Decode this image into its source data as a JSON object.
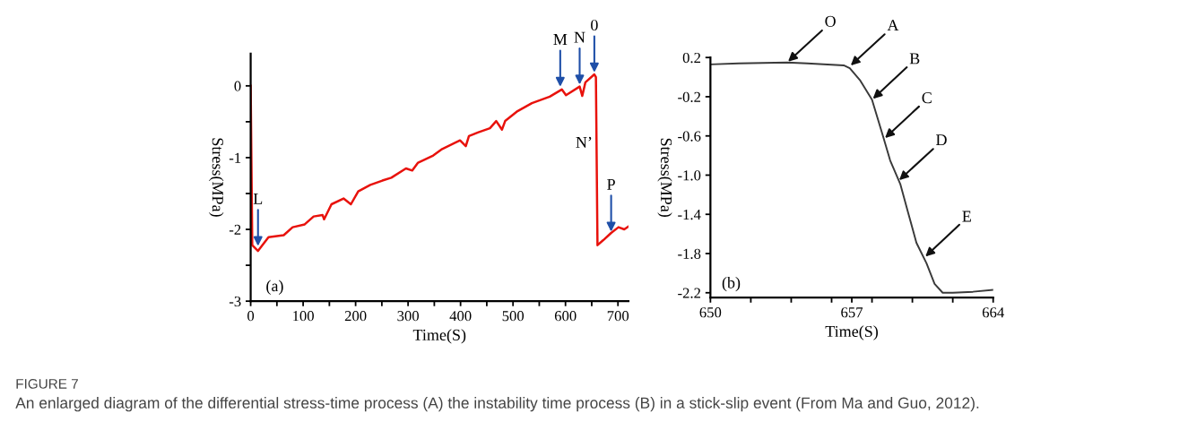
{
  "chart_data": [
    {
      "type": "line",
      "title": "(a)",
      "xlabel": "Time(S)",
      "ylabel": "Stress(MPa)",
      "x": [
        0,
        3,
        14,
        34,
        63,
        80,
        103,
        120,
        137,
        140,
        154,
        177,
        191,
        205,
        228,
        251,
        268,
        296,
        308,
        319,
        348,
        365,
        399,
        410,
        416,
        433,
        456,
        468,
        479,
        485,
        507,
        536,
        570,
        593,
        601,
        627,
        632,
        638,
        655,
        658,
        661,
        672,
        687,
        701,
        712,
        720
      ],
      "series": [
        {
          "color": "#e8120c",
          "values": [
            0,
            -2.22,
            -2.3,
            -2.11,
            -2.08,
            -1.97,
            -1.93,
            -1.82,
            -1.8,
            -1.86,
            -1.65,
            -1.57,
            -1.65,
            -1.47,
            -1.38,
            -1.32,
            -1.28,
            -1.15,
            -1.18,
            -1.07,
            -0.97,
            -0.88,
            -0.76,
            -0.84,
            -0.7,
            -0.65,
            -0.59,
            -0.49,
            -0.61,
            -0.49,
            -0.36,
            -0.24,
            -0.15,
            -0.05,
            -0.13,
            -0.01,
            -0.14,
            0.05,
            0.16,
            0.12,
            -2.22,
            -2.15,
            -2.05,
            -1.97,
            -2.0,
            -1.96
          ]
        }
      ],
      "xlim": [
        0,
        720
      ],
      "ylim": [
        -3,
        0.45
      ],
      "xticks": [
        0,
        {
          "value": 50,
          "label": null
        },
        100,
        {
          "value": 150,
          "label": null
        },
        200,
        {
          "value": 250,
          "label": null
        },
        300,
        {
          "value": 350,
          "label": null
        },
        400,
        {
          "value": 450,
          "label": null
        },
        500,
        {
          "value": 550,
          "label": null
        },
        600,
        {
          "value": 650,
          "label": null
        },
        700
      ],
      "yticks": [
        -3,
        {
          "value": -2.5,
          "label": null
        },
        -2,
        {
          "value": -1.5,
          "label": null
        },
        -1,
        {
          "value": -0.5,
          "label": null
        },
        0
      ],
      "grid": false,
      "legend": false,
      "line_style": "solid",
      "marker": "none",
      "annotations": [
        {
          "text": "L",
          "x": 14,
          "y": -2.25
        },
        {
          "text": "M",
          "x": 590,
          "y": -0.03
        },
        {
          "text": "N",
          "x": 627,
          "y": 0.0
        },
        {
          "text": "0",
          "x": 655,
          "y": 0.17
        },
        {
          "text": "P",
          "x": 687,
          "y": -2.05
        },
        "N’"
      ]
    },
    {
      "type": "line",
      "title": "(b)",
      "xlabel": "Time(S)",
      "ylabel": "Stress(MPa)",
      "x": [
        650,
        651.4,
        653.8,
        654.8,
        656.6,
        656.9,
        657.4,
        658,
        658.5,
        658.9,
        659.4,
        659.8,
        660.2,
        660.7,
        661.1,
        661.5,
        662,
        663,
        664
      ],
      "series": [
        {
          "color": "#3a3a3a",
          "values": [
            0.13,
            0.14,
            0.15,
            0.14,
            0.12,
            0.09,
            -0.03,
            -0.23,
            -0.57,
            -0.85,
            -1.09,
            -1.39,
            -1.69,
            -1.9,
            -2.11,
            -2.2,
            -2.2,
            -2.19,
            -2.17
          ]
        }
      ],
      "xlim": [
        650,
        664
      ],
      "ylim": [
        -2.25,
        0.2
      ],
      "xticks": [
        650,
        {
          "value": 652,
          "label": null
        },
        {
          "value": 654,
          "label": null
        },
        {
          "value": 656,
          "label": null
        },
        657,
        {
          "value": 658,
          "label": null
        },
        {
          "value": 660,
          "label": null
        },
        {
          "value": 662,
          "label": null
        },
        664
      ],
      "yticks": [
        {
          "value": -2.2,
          "label": "-2.2"
        },
        {
          "value": -1.8,
          "label": "-1.8"
        },
        {
          "value": -1.4,
          "label": "-1.4"
        },
        {
          "value": -1.0,
          "label": "-1.0"
        },
        {
          "value": -0.6,
          "label": "-0.6"
        },
        {
          "value": -0.2,
          "label": "-0.2"
        },
        0.2
      ],
      "grid": false,
      "legend": false,
      "line_style": "solid",
      "marker": "none",
      "annotations": [
        {
          "text": "O",
          "x": 653.8,
          "y": 0.15
        },
        {
          "text": "A",
          "x": 656.9,
          "y": 0.11
        },
        {
          "text": "B",
          "x": 658,
          "y": -0.23
        },
        {
          "text": "C",
          "x": 658.6,
          "y": -0.63
        },
        {
          "text": "D",
          "x": 659.3,
          "y": -1.06
        },
        {
          "text": "E",
          "x": 660.6,
          "y": -1.84
        },
        "FIGURE 7",
        "An enlarged diagram of the differential stress-time process (A) the instability time process (B) in a stick-slip event (From Ma and Guo, 2012)."
      ]
    }
  ]
}
